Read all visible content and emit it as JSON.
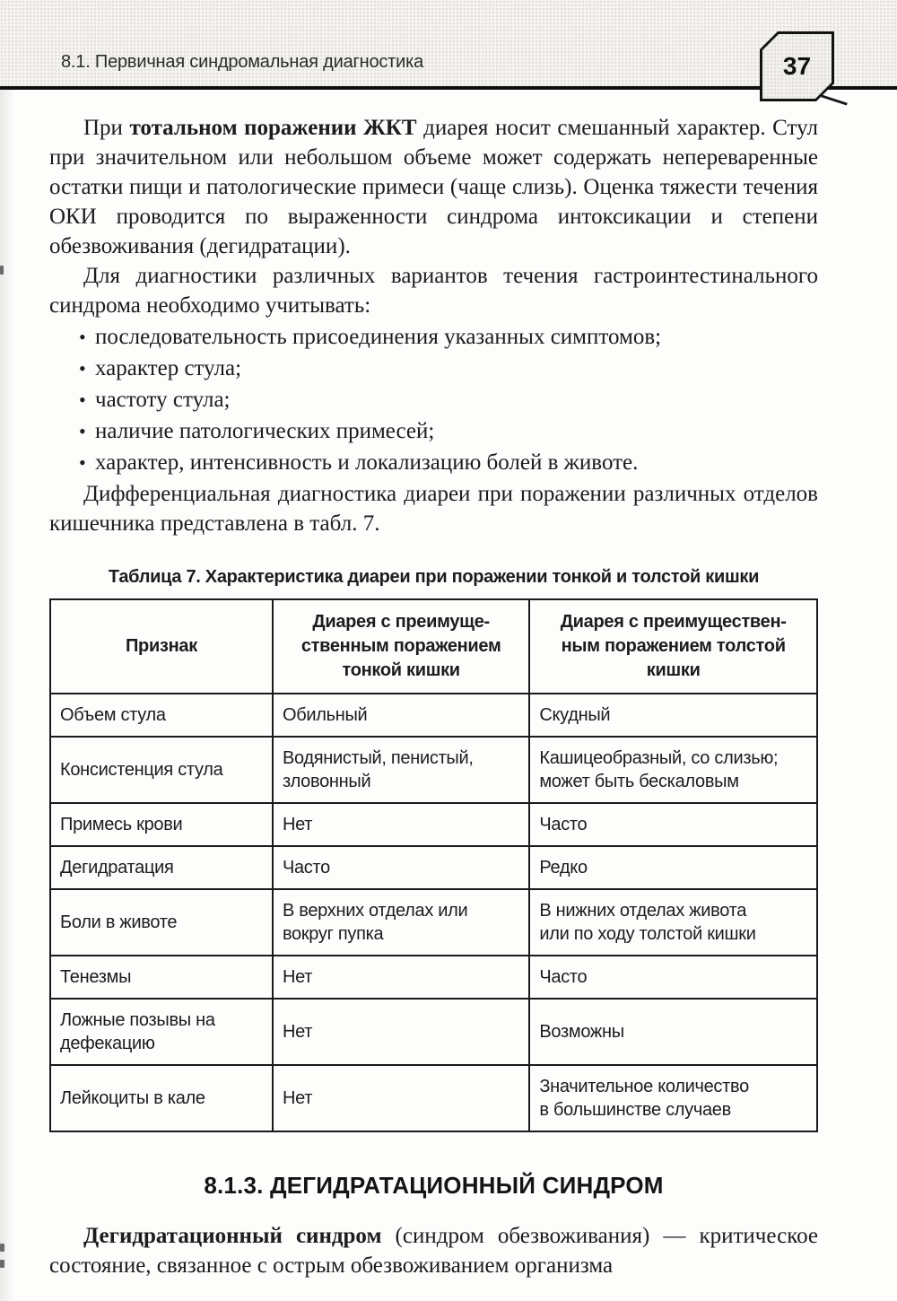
{
  "colors": {
    "ink": "#1c1c1c",
    "page_bg": "#fdfdfc",
    "strip_bg": "#f4f3ef",
    "rule": "#0f0f0f"
  },
  "header": {
    "title": "8.1. Первичная синдромальная диагностика",
    "page_number": "37"
  },
  "content": {
    "bullet_marker": "•",
    "intro": {
      "pre": "При ",
      "bold": "тотальном поражении ЖКТ",
      "rest": " диарея носит смешанный характер. Стул при значительном или небольшом объеме может содержать непереваренные остатки пищи и патологические примеси (чаще слизь). Оценка тяжести течения ОКИ проводится по выраженности синдрома интоксикации и степени обезвоживания (дегидратации)."
    },
    "diagnostics_lead": "Для диагностики различных вариантов течения гастроинтестинального синдрома необходимо учитывать:",
    "bullets": [
      "последовательность присоединения указанных симптомов;",
      "характер стула;",
      "частоту стула;",
      "наличие патологических примесей;",
      "характер, интенсивность и локализацию болей в животе."
    ],
    "table_ref": "Дифференциальная диагностика диареи при поражении различных отделов кишечника представлена в табл. 7."
  },
  "table": {
    "caption": "Таблица 7. Характеристика диареи при поражении тонкой и толстой кишки",
    "headers": [
      "Признак",
      "Диарея с преимуще-\nственным поражением\nтонкой кишки",
      "Диарея с преимуществен-\nным поражением толстой\nкишки"
    ],
    "rows": [
      {
        "feature": "Объем стула",
        "small": "Обильный",
        "large": "Скудный"
      },
      {
        "feature": "Консистенция стула",
        "small": "Водянистый, пенистый,\nзловонный",
        "large": "Кашицеобразный, со слизью;\nможет быть бескаловым"
      },
      {
        "feature": "Примесь крови",
        "small": "Нет",
        "large": "Часто"
      },
      {
        "feature": "Дегидратация",
        "small": "Часто",
        "large": "Редко"
      },
      {
        "feature": "Боли в животе",
        "small": "В верхних отделах или\nвокруг пупка",
        "large": "В нижних отделах живота\nили по ходу толстой кишки"
      },
      {
        "feature": "Тенезмы",
        "small": "Нет",
        "large": "Часто"
      },
      {
        "feature": "Ложные позывы на\nдефекацию",
        "small": "Нет",
        "large": "Возможны"
      },
      {
        "feature": "Лейкоциты в кале",
        "small": "Нет",
        "large": "Значительное количество\nв большинстве случаев"
      }
    ]
  },
  "section": {
    "heading": "8.1.3. ДЕГИДРАТАЦИОННЫЙ СИНДРОМ",
    "paragraph": {
      "bold": "Дегидратационный синдром",
      "rest": " (синдром обезвоживания) — критическое состояние, связанное с острым обезвоживанием организма"
    }
  }
}
